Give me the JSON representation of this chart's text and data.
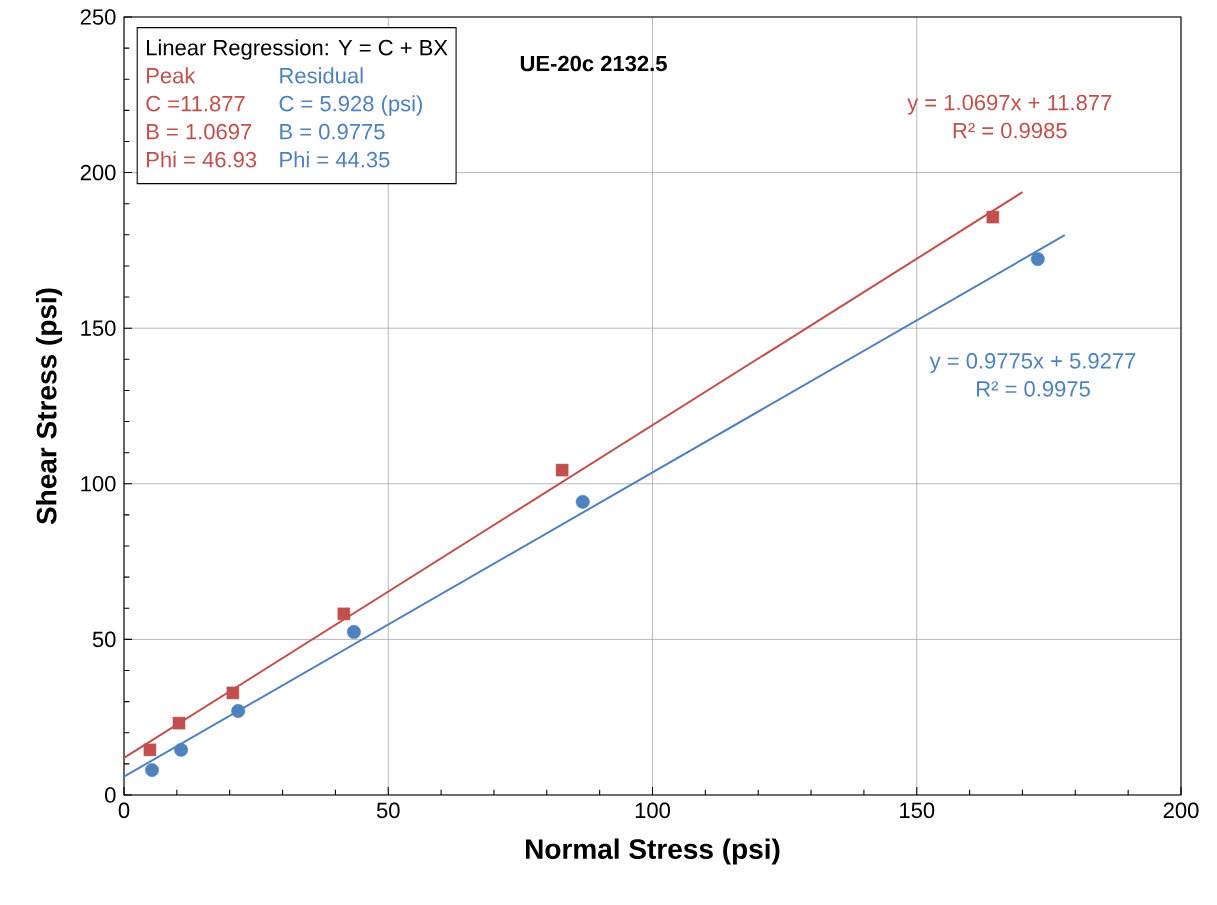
{
  "chart_data": {
    "type": "scatter",
    "title": "UE-20c 2132.5",
    "xlabel": "Normal Stress (psi)",
    "ylabel": "Shear Stress (psi)",
    "xlim": [
      0,
      200
    ],
    "ylim": [
      0,
      250
    ],
    "xticks": [
      0,
      50,
      100,
      150,
      200
    ],
    "yticks": [
      0,
      50,
      100,
      150,
      200,
      250
    ],
    "grid": true,
    "series": [
      {
        "marker": "square",
        "color": "#c0504d",
        "x": [
          4.9,
          10.4,
          20.6,
          41.6,
          82.9,
          164.4
        ],
        "values": [
          14.5,
          23.1,
          32.8,
          58.2,
          104.4,
          185.7
        ]
      },
      {
        "marker": "circle",
        "color": "#4f81bd",
        "x": [
          5.3,
          10.8,
          21.6,
          43.5,
          86.8,
          172.9
        ],
        "values": [
          8.0,
          14.5,
          27.0,
          52.4,
          94.2,
          172.2
        ]
      },
      {
        "type": "line",
        "marker": "none",
        "color": "#c0504d",
        "x": [
          0,
          170
        ],
        "values": [
          11.9,
          193.7
        ]
      },
      {
        "type": "line",
        "marker": "none",
        "color": "#4f81bd",
        "x": [
          0,
          178
        ],
        "values": [
          5.9,
          179.9
        ]
      }
    ],
    "annotations": [
      "Linear Regression: Y = C + BX",
      "Peak",
      "Residual",
      "C =11.877",
      "C = 5.928 (psi)",
      "B = 1.0697",
      "B = 0.9775",
      "Phi = 46.93",
      "Phi = 44.35",
      "y = 1.0697x + 11.877",
      "R² = 0.9985",
      "y = 0.9775x + 5.9277",
      "R² = 0.9975"
    ]
  }
}
